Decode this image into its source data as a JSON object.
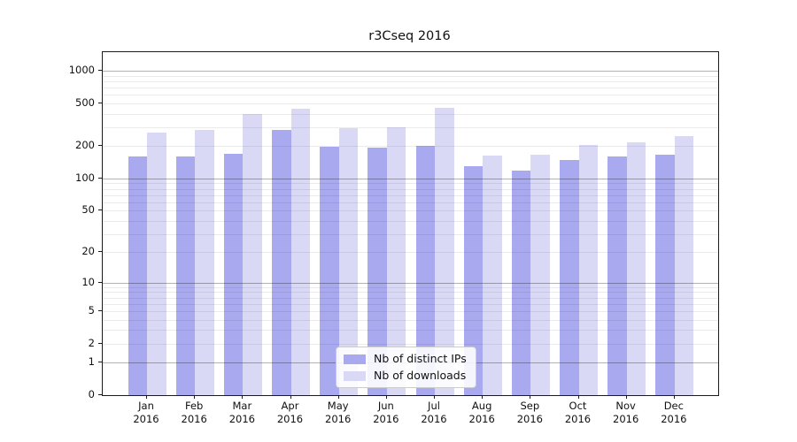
{
  "chart_data": {
    "type": "bar",
    "title": "r3Cseq 2016",
    "year_label": "2016",
    "categories": [
      "Jan",
      "Feb",
      "Mar",
      "Apr",
      "May",
      "Jun",
      "Jul",
      "Aug",
      "Sep",
      "Oct",
      "Nov",
      "Dec"
    ],
    "series": [
      {
        "name": "Nb of distinct IPs",
        "color": "#a9a9f0",
        "values": [
          160,
          160,
          170,
          280,
          199,
          195,
          200,
          130,
          118,
          149,
          160,
          167
        ]
      },
      {
        "name": "Nb of downloads",
        "color": "#d9d9f6",
        "values": [
          266,
          285,
          400,
          445,
          295,
          300,
          453,
          164,
          166,
          205,
          216,
          248
        ]
      }
    ],
    "yscale": "log1p",
    "ylim": [
      0,
      1485
    ],
    "yticks": [
      0,
      1,
      2,
      5,
      10,
      20,
      50,
      100,
      200,
      500,
      1000
    ],
    "grid": {
      "major_color": "rgba(0,0,0,0.30)",
      "minor_color": "rgba(0,0,0,0.08)"
    },
    "legend_position": "lower center inside"
  }
}
